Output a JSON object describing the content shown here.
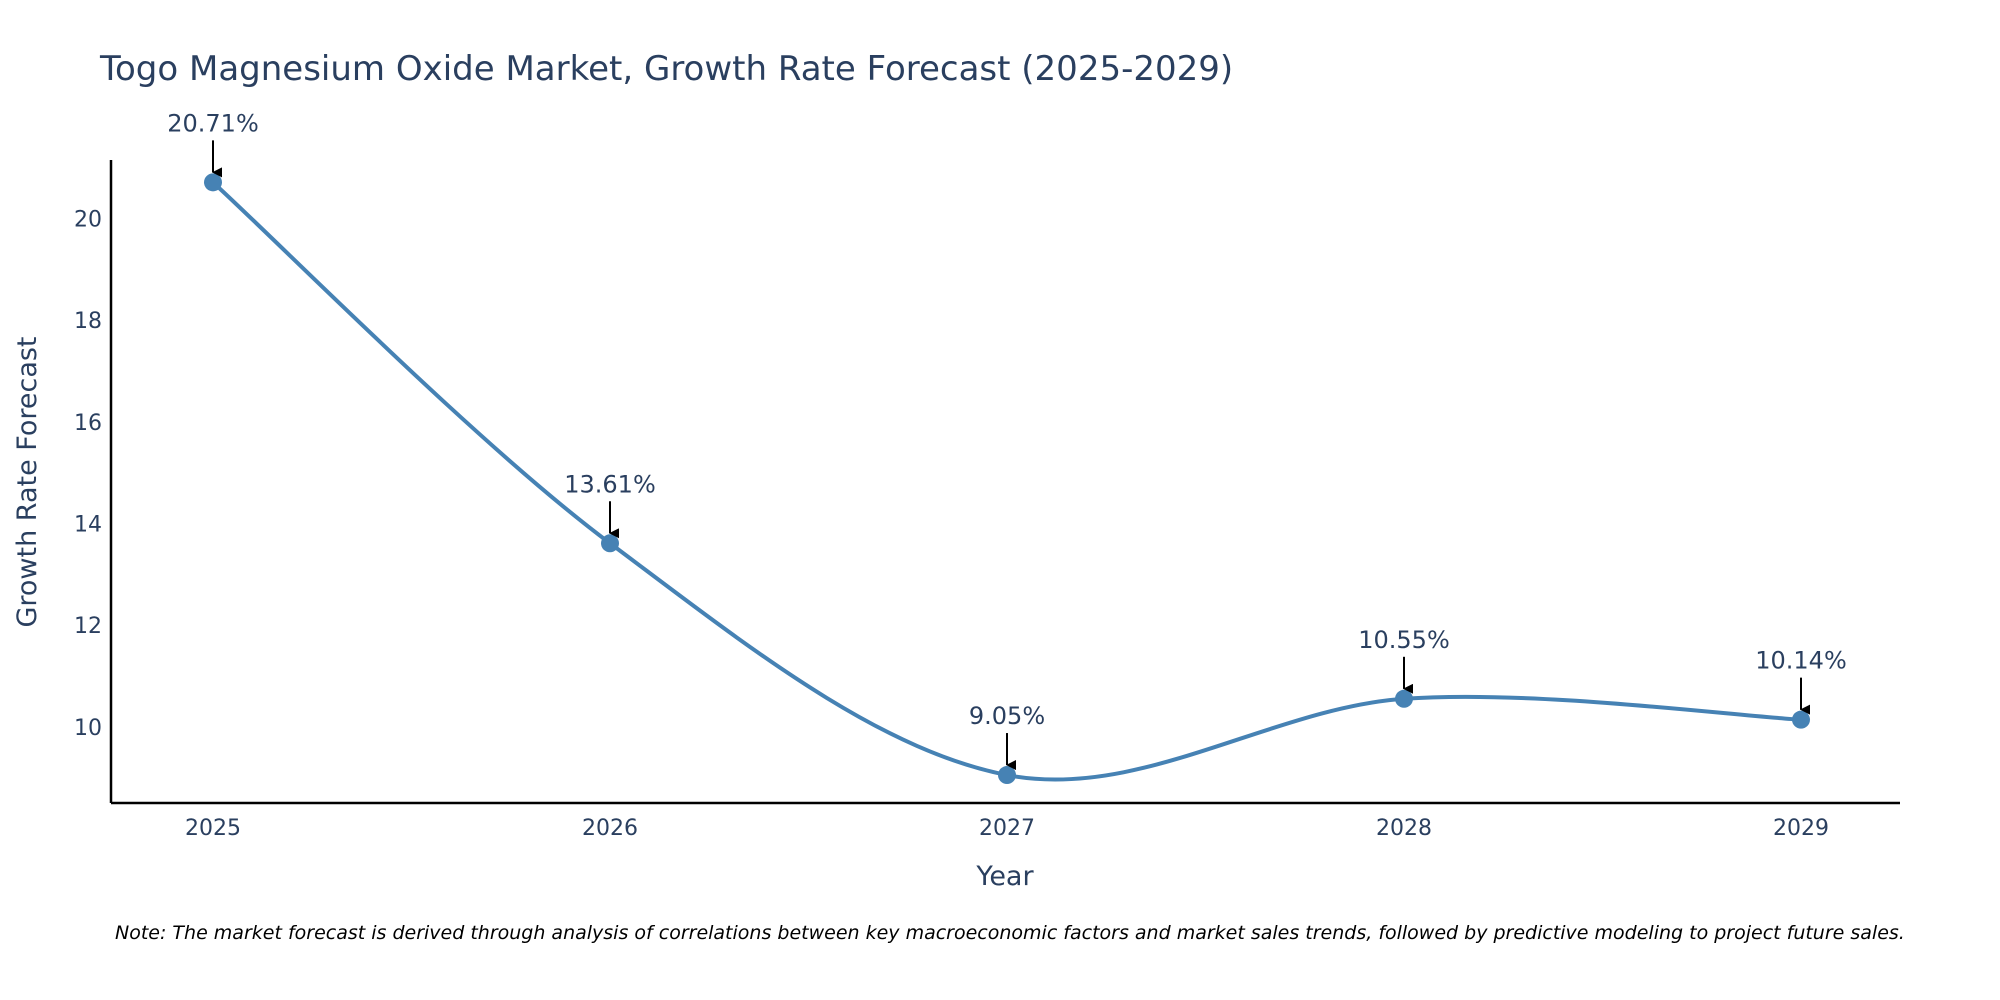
{
  "chart_data": {
    "type": "line",
    "title": "Togo Magnesium Oxide Market, Growth Rate Forecast (2025-2029)",
    "xlabel": "Year",
    "ylabel": "Growth Rate Forecast",
    "categories": [
      "2025",
      "2026",
      "2027",
      "2028",
      "2029"
    ],
    "series": [
      {
        "name": "Growth Rate Forecast",
        "values": [
          20.71,
          13.61,
          9.05,
          10.55,
          10.14
        ],
        "labels": [
          "20.71%",
          "13.61%",
          "9.05%",
          "10.55%",
          "10.14%"
        ]
      }
    ],
    "ylim": [
      8.5,
      21.15
    ],
    "yticks": [
      10,
      12,
      14,
      16,
      18,
      20
    ],
    "yticklabels": [
      "10",
      "12",
      "14",
      "16",
      "18",
      "20"
    ],
    "grid": false,
    "line_color": "#4682b4",
    "marker_color": "#4682b4",
    "arrow_color": "#000000",
    "note": "Note: The market forecast is derived through analysis of correlations between key macroeconomic factors and market sales trends, followed by predictive modeling to project future sales."
  }
}
